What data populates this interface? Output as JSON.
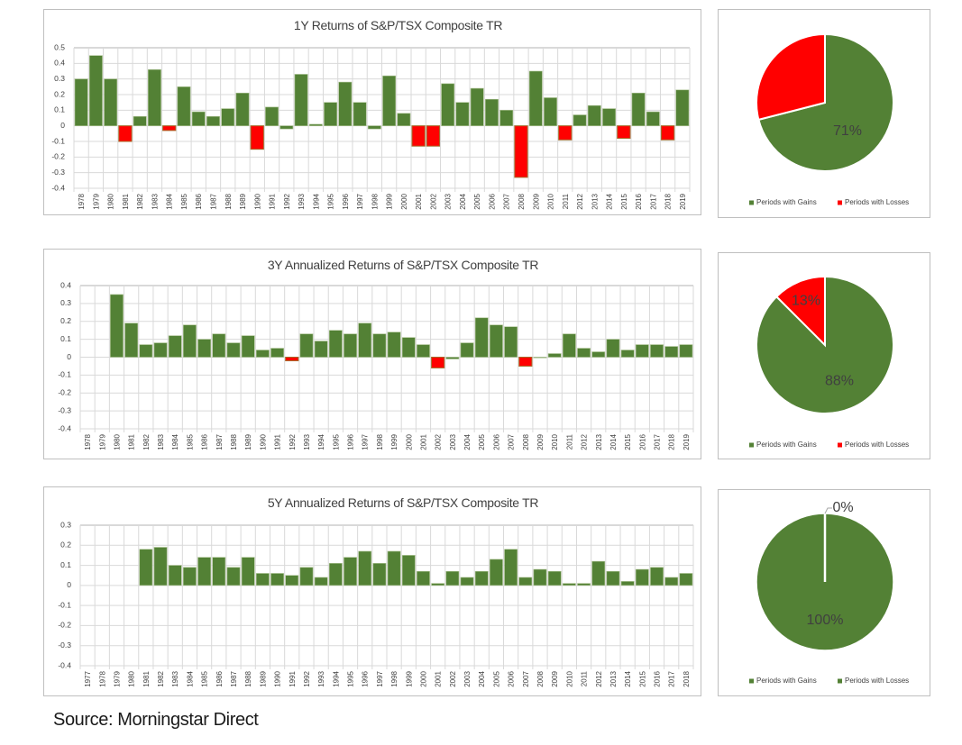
{
  "colors": {
    "gain": "#538135",
    "loss": "#ff0000",
    "loss_border": "#a56a2a",
    "grid": "#d9d9d9",
    "text": "#404040"
  },
  "source_text": "Source: Morningstar Direct",
  "chart_data": [
    {
      "id": "bar1",
      "type": "bar",
      "title": "1Y  Returns of S&P/TSX Composite TR",
      "xlabel": "",
      "ylabel": "",
      "ylim": [
        -0.4,
        0.5
      ],
      "yticks": [
        "0.5",
        "0.4",
        "0.3",
        "0.2",
        "0.1",
        "0",
        "-0.1",
        "-0.2",
        "-0.3",
        "-0.4"
      ],
      "ytick_values": [
        0.5,
        0.4,
        0.3,
        0.2,
        0.1,
        0,
        -0.1,
        -0.2,
        -0.3,
        -0.4
      ],
      "grid": true,
      "categories": [
        "1978",
        "1979",
        "1980",
        "1981",
        "1982",
        "1983",
        "1984",
        "1985",
        "1986",
        "1987",
        "1988",
        "1989",
        "1990",
        "1991",
        "1992",
        "1993",
        "1994",
        "1995",
        "1996",
        "1997",
        "1998",
        "1999",
        "2000",
        "2001",
        "2002",
        "2003",
        "2004",
        "2005",
        "2006",
        "2007",
        "2008",
        "2009",
        "2010",
        "2011",
        "2012",
        "2013",
        "2014",
        "2015",
        "2016",
        "2017",
        "2018",
        "2019"
      ],
      "values": [
        0.3,
        0.45,
        0.3,
        -0.1,
        0.06,
        0.36,
        -0.03,
        0.25,
        0.09,
        0.06,
        0.11,
        0.21,
        -0.15,
        0.12,
        -0.02,
        0.33,
        0.01,
        0.15,
        0.28,
        0.15,
        -0.02,
        0.32,
        0.08,
        -0.13,
        -0.13,
        0.27,
        0.15,
        0.24,
        0.17,
        0.1,
        -0.33,
        0.35,
        0.18,
        -0.09,
        0.07,
        0.13,
        0.11,
        -0.08,
        0.21,
        0.09,
        -0.09,
        0.23
      ],
      "loss_highlight": [
        false,
        false,
        false,
        true,
        false,
        false,
        true,
        false,
        false,
        false,
        false,
        false,
        true,
        false,
        false,
        false,
        false,
        false,
        false,
        false,
        false,
        false,
        false,
        true,
        true,
        false,
        false,
        false,
        false,
        false,
        true,
        false,
        false,
        true,
        false,
        false,
        false,
        true,
        false,
        false,
        true,
        false
      ]
    },
    {
      "id": "bar2",
      "type": "bar",
      "title": "3Y Annualized Returns of S&P/TSX Composite TR",
      "xlabel": "",
      "ylabel": "",
      "ylim": [
        -0.4,
        0.4
      ],
      "yticks": [
        "0.4",
        "0.3",
        "0.2",
        "0.1",
        "0",
        "-0.1",
        "-0.2",
        "-0.3",
        "-0.4"
      ],
      "ytick_values": [
        0.4,
        0.3,
        0.2,
        0.1,
        0,
        -0.1,
        -0.2,
        -0.3,
        -0.4
      ],
      "grid": true,
      "categories": [
        "1978",
        "1979",
        "1980",
        "1981",
        "1982",
        "1983",
        "1984",
        "1985",
        "1986",
        "1987",
        "1988",
        "1989",
        "1990",
        "1991",
        "1992",
        "1993",
        "1994",
        "1995",
        "1996",
        "1997",
        "1998",
        "1999",
        "2000",
        "2001",
        "2002",
        "2003",
        "2004",
        "2005",
        "2006",
        "2007",
        "2008",
        "2009",
        "2010",
        "2011",
        "2012",
        "2013",
        "2014",
        "2015",
        "2016",
        "2017",
        "2018",
        "2019"
      ],
      "values": [
        null,
        null,
        0.35,
        0.19,
        0.07,
        0.08,
        0.12,
        0.18,
        0.1,
        0.13,
        0.08,
        0.12,
        0.04,
        0.05,
        -0.02,
        0.13,
        0.09,
        0.15,
        0.13,
        0.19,
        0.13,
        0.14,
        0.11,
        0.07,
        -0.06,
        -0.01,
        0.08,
        0.22,
        0.18,
        0.17,
        -0.05,
        0.0,
        0.02,
        0.13,
        0.05,
        0.03,
        0.1,
        0.04,
        0.07,
        0.07,
        0.06,
        0.07
      ],
      "loss_highlight": [
        false,
        false,
        false,
        false,
        false,
        false,
        false,
        false,
        false,
        false,
        false,
        false,
        false,
        false,
        true,
        false,
        false,
        false,
        false,
        false,
        false,
        false,
        false,
        false,
        true,
        false,
        false,
        false,
        false,
        false,
        true,
        false,
        false,
        false,
        false,
        false,
        false,
        false,
        false,
        false,
        false,
        false
      ]
    },
    {
      "id": "bar3",
      "type": "bar",
      "title": "5Y Annualized Returns of S&P/TSX Composite TR",
      "xlabel": "",
      "ylabel": "",
      "ylim": [
        -0.4,
        0.3
      ],
      "yticks": [
        "0.3",
        "0.2",
        "0.1",
        "0",
        "-0.1",
        "-0.2",
        "-0.3",
        "-0.4"
      ],
      "ytick_values": [
        0.3,
        0.2,
        0.1,
        0,
        -0.1,
        -0.2,
        -0.3,
        -0.4
      ],
      "grid": true,
      "categories": [
        "1977",
        "1978",
        "1979",
        "1980",
        "1981",
        "1982",
        "1983",
        "1984",
        "1985",
        "1986",
        "1987",
        "1988",
        "1989",
        "1990",
        "1991",
        "1992",
        "1993",
        "1994",
        "1995",
        "1996",
        "1997",
        "1998",
        "1999",
        "2000",
        "2001",
        "2002",
        "2003",
        "2004",
        "2005",
        "2006",
        "2007",
        "2008",
        "2009",
        "2010",
        "2011",
        "2012",
        "2013",
        "2014",
        "2015",
        "2016",
        "2017",
        "2018"
      ],
      "values": [
        null,
        null,
        null,
        null,
        0.18,
        0.19,
        0.1,
        0.09,
        0.14,
        0.14,
        0.09,
        0.14,
        0.06,
        0.06,
        0.05,
        0.09,
        0.04,
        0.11,
        0.14,
        0.17,
        0.11,
        0.17,
        0.15,
        0.07,
        0.01,
        0.07,
        0.04,
        0.07,
        0.13,
        0.18,
        0.04,
        0.08,
        0.07,
        0.01,
        0.01,
        0.12,
        0.07,
        0.02,
        0.08,
        0.09,
        0.04,
        0.06
      ],
      "loss_highlight": []
    },
    {
      "id": "pie1",
      "type": "pie",
      "title": "",
      "slices": [
        {
          "name": "Periods with Gains",
          "value": 71,
          "label": "71%",
          "color": "#538135"
        },
        {
          "name": "Periods with Losses",
          "value": 29,
          "label": "",
          "color": "#ff0000"
        }
      ],
      "legend": [
        "Periods with Gains",
        "Periods with Losses"
      ],
      "legend_colors": [
        "#538135",
        "#ff0000"
      ],
      "legend_position": "bottom"
    },
    {
      "id": "pie2",
      "type": "pie",
      "title": "",
      "slices": [
        {
          "name": "Periods with Gains",
          "value": 87.5,
          "label": "88%",
          "color": "#538135"
        },
        {
          "name": "Periods with Losses",
          "value": 12.5,
          "label": "13%",
          "color": "#ff0000"
        }
      ],
      "legend": [
        "Periods with Gains",
        "Periods with Losses"
      ],
      "legend_colors": [
        "#538135",
        "#ff0000"
      ],
      "legend_position": "bottom"
    },
    {
      "id": "pie3",
      "type": "pie",
      "title": "",
      "slices": [
        {
          "name": "Periods with Gains",
          "value": 100,
          "label": "100%",
          "color": "#538135"
        },
        {
          "name": "Periods with Losses",
          "value": 0,
          "label": "0%",
          "color": "#538135"
        }
      ],
      "legend": [
        "Periods with Gains",
        "Periods with Losses"
      ],
      "legend_colors": [
        "#538135",
        "#538135"
      ],
      "legend_position": "bottom"
    }
  ]
}
